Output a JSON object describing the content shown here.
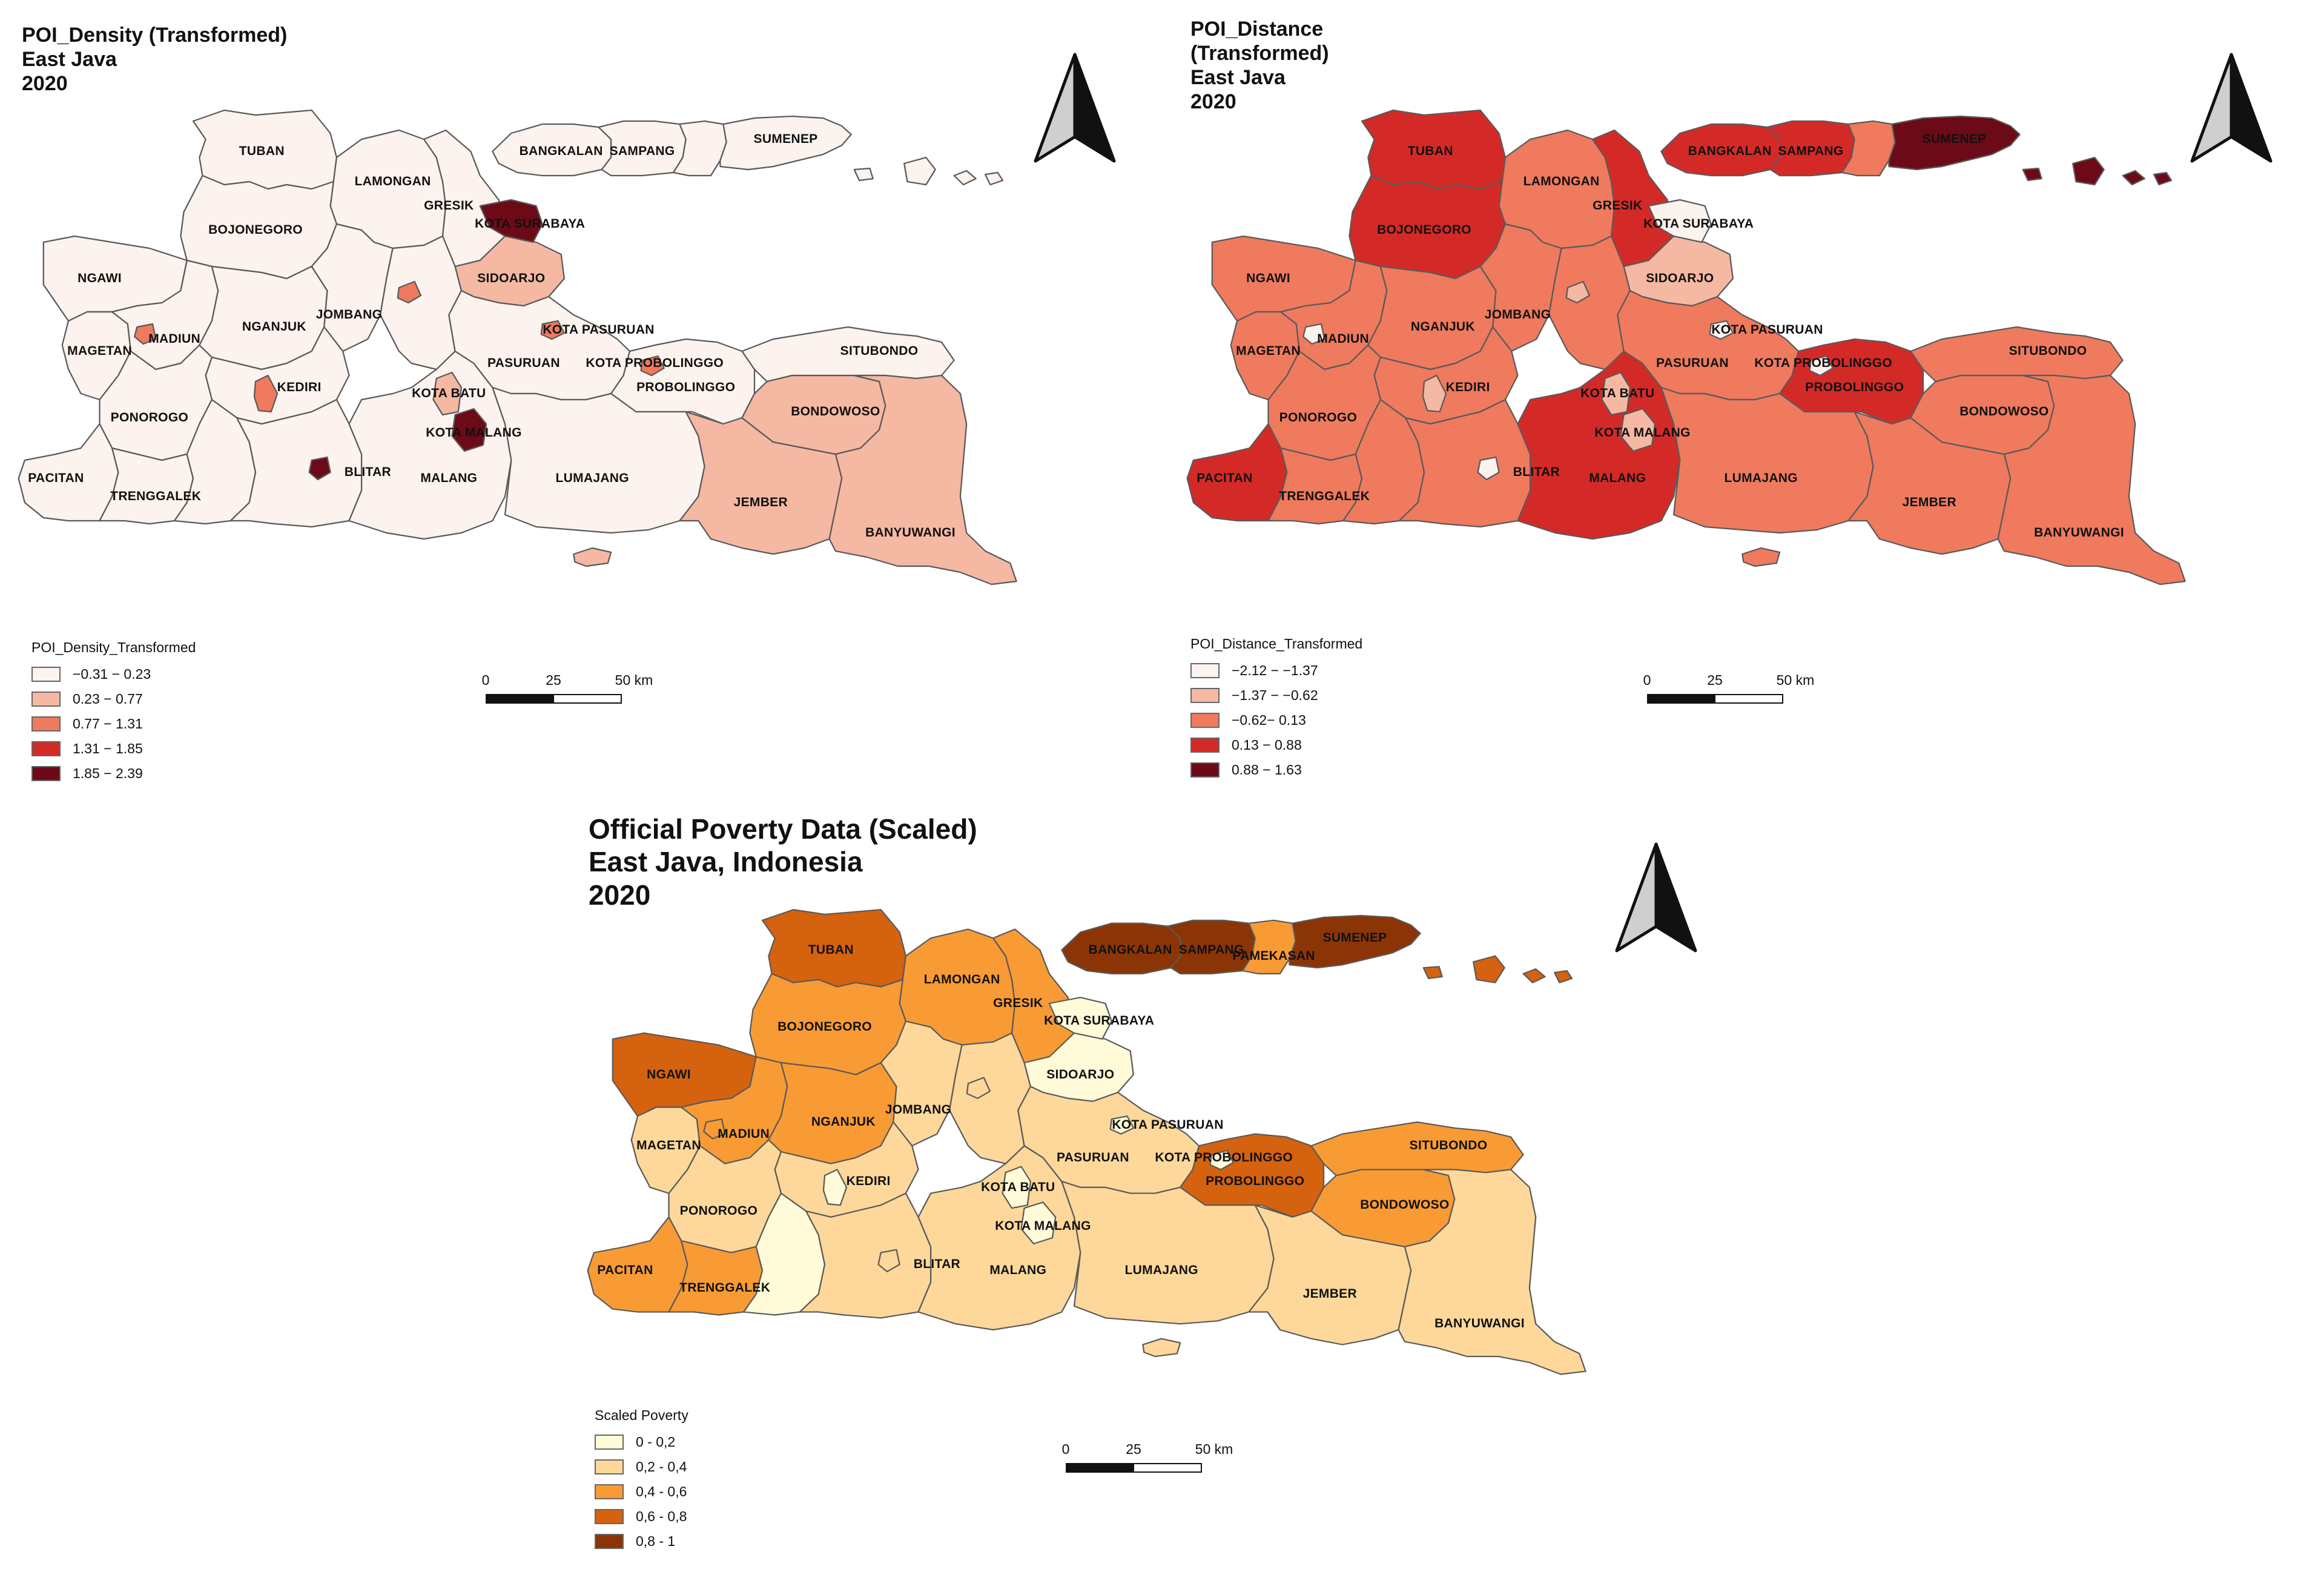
{
  "maps": [
    {
      "id": "density",
      "title": [
        "POI_Density (Transformed)",
        "East Java",
        "2020"
      ],
      "legend": {
        "title": "POI_Density_Transformed",
        "classes": [
          {
            "label": "−0.31 − 0.23",
            "color": "#fcf2ee"
          },
          {
            "label": "0.23 − 0.77",
            "color": "#f5b8a3"
          },
          {
            "label": "0.77 − 1.31",
            "color": "#ef7a5e"
          },
          {
            "label": "1.31 − 1.85",
            "color": "#d42a27"
          },
          {
            "label": "1.85 − 2.39",
            "color": "#6d0a17"
          }
        ]
      },
      "scale": {
        "ticks": [
          "0",
          "25",
          "50 km"
        ]
      }
    },
    {
      "id": "distance",
      "title": [
        "POI_Distance",
        "(Transformed)",
        "East Java",
        "2020"
      ],
      "legend": {
        "title": "POI_Distance_Transformed",
        "classes": [
          {
            "label": "−2.12 − −1.37",
            "color": "#fcf2ee"
          },
          {
            "label": "−1.37 − −0.62",
            "color": "#f5b8a3"
          },
          {
            "label": "−0.62− 0.13",
            "color": "#ef7a5e"
          },
          {
            "label": "0.13 − 0.88",
            "color": "#d42a27"
          },
          {
            "label": "0.88 − 1.63",
            "color": "#6d0a17"
          }
        ]
      },
      "scale": {
        "ticks": [
          "0",
          "25",
          "50 km"
        ]
      }
    },
    {
      "id": "poverty",
      "title": [
        "Official Poverty Data (Scaled)",
        "East Java, Indonesia",
        "2020"
      ],
      "legend": {
        "title": "Scaled Poverty",
        "classes": [
          {
            "label": "0 - 0,2",
            "color": "#fffbd8"
          },
          {
            "label": "0,2 - 0,4",
            "color": "#fdd89a"
          },
          {
            "label": "0,4 - 0,6",
            "color": "#f89b34"
          },
          {
            "label": "0,6 - 0,8",
            "color": "#d4620f"
          },
          {
            "label": "0,8 - 1",
            "color": "#8b3507"
          }
        ]
      },
      "scale": {
        "ticks": [
          "0",
          "25",
          "50 km"
        ]
      }
    }
  ],
  "regions": [
    {
      "id": "TUBAN",
      "label": "TUBAN",
      "density": 0,
      "distance": 3,
      "poverty": 3
    },
    {
      "id": "LAMONGAN",
      "label": "LAMONGAN",
      "density": 0,
      "distance": 2,
      "poverty": 2
    },
    {
      "id": "GRESIK",
      "label": "GRESIK",
      "density": 0,
      "distance": 3,
      "poverty": 2
    },
    {
      "id": "BOJONEGORO",
      "label": "BOJONEGORO",
      "density": 0,
      "distance": 3,
      "poverty": 2
    },
    {
      "id": "NGAWI",
      "label": "NGAWI",
      "density": 0,
      "distance": 2,
      "poverty": 3
    },
    {
      "id": "MAGETAN",
      "label": "MAGETAN",
      "density": 0,
      "distance": 2,
      "poverty": 1
    },
    {
      "id": "MADIUN",
      "label": "MADIUN",
      "density": 0,
      "distance": 2,
      "poverty": 2
    },
    {
      "id": "NGANJUK",
      "label": "NGANJUK",
      "density": 0,
      "distance": 2,
      "poverty": 2
    },
    {
      "id": "JOMBANG",
      "label": "JOMBANG",
      "density": 0,
      "distance": 2,
      "poverty": 1
    },
    {
      "id": "KEDIRI",
      "label": "KEDIRI",
      "density": 0,
      "distance": 2,
      "poverty": 1
    },
    {
      "id": "PONOROGO",
      "label": "PONOROGO",
      "density": 0,
      "distance": 2,
      "poverty": 1
    },
    {
      "id": "PACITAN",
      "label": "PACITAN",
      "density": 0,
      "distance": 3,
      "poverty": 2
    },
    {
      "id": "TRENGGALEK",
      "label": "TRENGGALEK",
      "density": 0,
      "distance": 2,
      "poverty": 2
    },
    {
      "id": "TULUNGAGUNG",
      "label": "",
      "density": 0,
      "distance": 2,
      "poverty": 0
    },
    {
      "id": "BLITAR",
      "label": "BLITAR",
      "density": 0,
      "distance": 2,
      "poverty": 1
    },
    {
      "id": "MALANG",
      "label": "MALANG",
      "density": 0,
      "distance": 3,
      "poverty": 1
    },
    {
      "id": "MOJOKERTO",
      "label": "",
      "density": 0,
      "distance": 2,
      "poverty": 1
    },
    {
      "id": "SIDOARJO",
      "label": "SIDOARJO",
      "density": 1,
      "distance": 1,
      "poverty": 0
    },
    {
      "id": "PASURUAN",
      "label": "PASURUAN",
      "density": 0,
      "distance": 2,
      "poverty": 1
    },
    {
      "id": "PROBOLINGGO",
      "label": "PROBOLINGGO",
      "density": 0,
      "distance": 3,
      "poverty": 3
    },
    {
      "id": "LUMAJANG",
      "label": "LUMAJANG",
      "density": 0,
      "distance": 2,
      "poverty": 1
    },
    {
      "id": "JEMBER",
      "label": "JEMBER",
      "density": 1,
      "distance": 2,
      "poverty": 1
    },
    {
      "id": "BONDOWOSO",
      "label": "BONDOWOSO",
      "density": 1,
      "distance": 2,
      "poverty": 2
    },
    {
      "id": "SITUBONDO",
      "label": "SITUBONDO",
      "density": 0,
      "distance": 2,
      "poverty": 2
    },
    {
      "id": "BANYUWANGI",
      "label": "BANYUWANGI",
      "density": 1,
      "distance": 2,
      "poverty": 1
    },
    {
      "id": "BANGKALAN",
      "label": "BANGKALAN",
      "density": 0,
      "distance": 3,
      "poverty": 4
    },
    {
      "id": "SAMPANG",
      "label": "SAMPANG",
      "density": 0,
      "distance": 3,
      "poverty": 4
    },
    {
      "id": "PAMEKASAN",
      "label": "PAMEKASAN",
      "density": 0,
      "distance": 2,
      "poverty": 2
    },
    {
      "id": "SUMENEP",
      "label": "SUMENEP",
      "density": 0,
      "distance": 4,
      "poverty": 4
    },
    {
      "id": "KOTA_SURABAYA",
      "label": "KOTA SURABAYA",
      "density": 4,
      "distance": 0,
      "poverty": 0
    },
    {
      "id": "KOTA_PASURUAN",
      "label": "KOTA PASURUAN",
      "density": 2,
      "distance": 0,
      "poverty": 0
    },
    {
      "id": "KOTA_PROBOLINGGO",
      "label": "KOTA PROBOLINGGO",
      "density": 2,
      "distance": 0,
      "poverty": 0
    },
    {
      "id": "KOTA_BATU",
      "label": "KOTA BATU",
      "density": 1,
      "distance": 1,
      "poverty": 0
    },
    {
      "id": "KOTA_MALANG",
      "label": "KOTA MALANG",
      "density": 4,
      "distance": 1,
      "poverty": 0
    },
    {
      "id": "KOTA_MADIUN",
      "label": "",
      "density": 2,
      "distance": 0,
      "poverty": 2
    },
    {
      "id": "KOTA_KEDIRI",
      "label": "",
      "density": 2,
      "distance": 1,
      "poverty": 0
    },
    {
      "id": "KOTA_BLITAR",
      "label": "",
      "density": 4,
      "distance": 0,
      "poverty": 1
    },
    {
      "id": "KOTA_MOJOKERTO",
      "label": "",
      "density": 2,
      "distance": 1,
      "poverty": 1
    },
    {
      "id": "ISLANDS",
      "label": "",
      "density": 0,
      "distance": 4,
      "poverty": 3
    },
    {
      "id": "NUSA_BARUNG",
      "label": "",
      "density": 1,
      "distance": 2,
      "poverty": 1
    }
  ]
}
